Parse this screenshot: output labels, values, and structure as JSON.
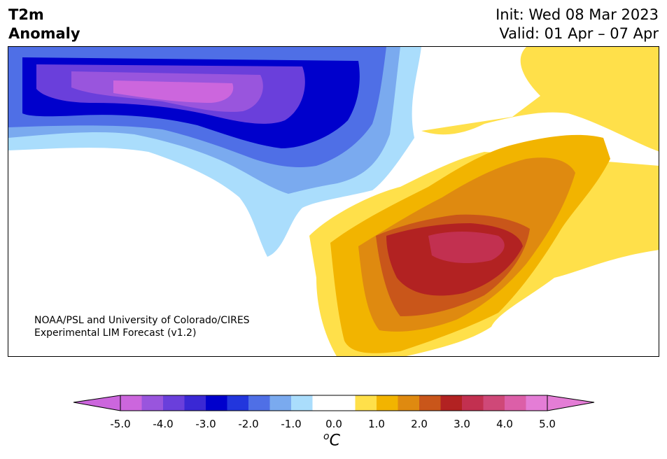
{
  "header": {
    "variable": "T2m",
    "field": "Anomaly",
    "init": "Init: Wed 08 Mar 2023",
    "valid": "Valid: 01 Apr – 07 Apr"
  },
  "credit": {
    "line1": "NOAA/PSL and University of Colorado/CIRES",
    "line2": "Experimental LIM Forecast (v1.2)"
  },
  "colorbar": {
    "ticks": [
      "-5.0",
      "-4.0",
      "-3.0",
      "-2.0",
      "-1.0",
      "0.0",
      "1.0",
      "2.0",
      "3.0",
      "4.0",
      "5.0"
    ],
    "unit_base": "C",
    "unit_sup": "o",
    "colors": [
      "#cc66dd",
      "#9955dd",
      "#6a3fdb",
      "#3a28d4",
      "#0000cc",
      "#2236dd",
      "#4f6fe6",
      "#7aaaef",
      "#aaddfc",
      "#ffffff",
      "#ffffff",
      "#ffe04a",
      "#f2b400",
      "#df8a10",
      "#c9561a",
      "#b22222",
      "#c23050",
      "#cf4878",
      "#dc5fa8",
      "#e47dd6"
    ],
    "under_color": "#cc66dd",
    "over_color": "#e47dd6"
  }
}
